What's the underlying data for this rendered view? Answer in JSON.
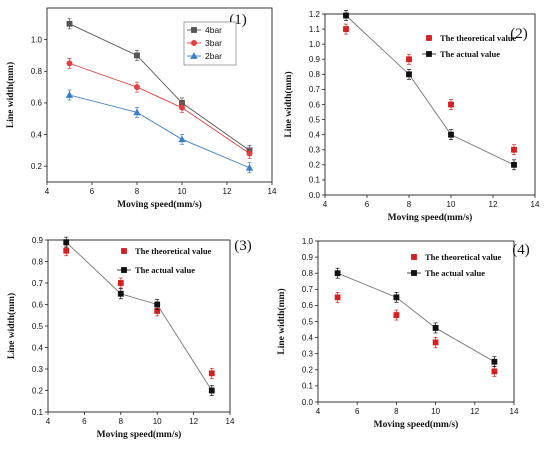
{
  "chart_data": [
    {
      "type": "line",
      "panel_label": "(1)",
      "xlabel": "Moving speed(mm/s)",
      "ylabel": "Line width(mm)",
      "xlim": [
        4,
        14
      ],
      "ylim": [
        0.1,
        1.2
      ],
      "xticks": [
        4,
        6,
        8,
        10,
        12,
        14
      ],
      "yticks": [
        0.2,
        0.4,
        0.6,
        0.8,
        1.0
      ],
      "ytick_labels": [
        "0.2",
        "0.4",
        "0.6",
        "0.8",
        "1.0"
      ],
      "legend_position": "top-right",
      "x": [
        5,
        8,
        10,
        13
      ],
      "series": [
        {
          "name": "4bar",
          "values": [
            1.1,
            0.9,
            0.6,
            0.3
          ],
          "color": "#555555",
          "marker": "square"
        },
        {
          "name": "3bar",
          "values": [
            0.85,
            0.7,
            0.57,
            0.28
          ],
          "color": "#e04040",
          "marker": "circle"
        },
        {
          "name": "2bar",
          "values": [
            0.65,
            0.54,
            0.37,
            0.19
          ],
          "color": "#3a7dc9",
          "marker": "triangle"
        }
      ]
    },
    {
      "type": "line",
      "panel_label": "(2)",
      "xlabel": "Moving speed(mm/s)",
      "ylabel": "Line width(mm)",
      "xlim": [
        4,
        14
      ],
      "ylim": [
        0,
        1.2
      ],
      "xticks": [
        4,
        6,
        8,
        10,
        12,
        14
      ],
      "yticks": [
        0,
        0.1,
        0.2,
        0.3,
        0.4,
        0.5,
        0.6,
        0.7,
        0.8,
        0.9,
        1.0,
        1.1,
        1.2
      ],
      "ytick_labels": [
        "0.0",
        "0.1",
        "0.2",
        "0.3",
        "0.4",
        "0.5",
        "0.6",
        "0.7",
        "0.8",
        "0.9",
        "1.0",
        "1.1",
        "1.2"
      ],
      "legend_position": "top-right",
      "x": [
        5,
        8,
        10,
        13
      ],
      "series": [
        {
          "name": "The theoretical value",
          "values": [
            1.1,
            0.9,
            0.6,
            0.3
          ],
          "color": "#d42020",
          "marker": "square",
          "line": false
        },
        {
          "name": "The actual value",
          "values": [
            1.19,
            0.8,
            0.4,
            0.2
          ],
          "color": "#111111",
          "marker": "square",
          "line": true
        }
      ]
    },
    {
      "type": "line",
      "panel_label": "(3)",
      "xlabel": "Moving speed(mm/s)",
      "ylabel": "Line width(mm)",
      "xlim": [
        4,
        14
      ],
      "ylim": [
        0.1,
        0.9
      ],
      "xticks": [
        4,
        6,
        8,
        10,
        12,
        14
      ],
      "yticks": [
        0.1,
        0.2,
        0.3,
        0.4,
        0.5,
        0.6,
        0.7,
        0.8,
        0.9
      ],
      "ytick_labels": [
        "0.1",
        "0.2",
        "0.3",
        "0.4",
        "0.5",
        "0.6",
        "0.7",
        "0.8",
        "0.9"
      ],
      "legend_position": "top-right",
      "x": [
        5,
        8,
        10,
        13
      ],
      "series": [
        {
          "name": "The theoretical value",
          "values": [
            0.85,
            0.7,
            0.57,
            0.28
          ],
          "color": "#d42020",
          "marker": "square",
          "line": false
        },
        {
          "name": "The actual value",
          "values": [
            0.89,
            0.65,
            0.6,
            0.2
          ],
          "color": "#111111",
          "marker": "square",
          "line": true
        }
      ]
    },
    {
      "type": "line",
      "panel_label": "(4)",
      "xlabel": "Moving speed(mm/s)",
      "ylabel": "Line width(mm)",
      "xlim": [
        4,
        14
      ],
      "ylim": [
        0,
        1.0
      ],
      "xticks": [
        4,
        6,
        8,
        10,
        12,
        14
      ],
      "yticks": [
        0,
        0.1,
        0.2,
        0.3,
        0.4,
        0.5,
        0.6,
        0.7,
        0.8,
        0.9,
        1.0
      ],
      "ytick_labels": [
        "0.0",
        "0.1",
        "0.2",
        "0.3",
        "0.4",
        "0.5",
        "0.6",
        "0.7",
        "0.8",
        "0.9",
        "1.0"
      ],
      "legend_position": "top-right",
      "x": [
        5,
        8,
        10,
        13
      ],
      "series": [
        {
          "name": "The theoretical value",
          "values": [
            0.65,
            0.54,
            0.37,
            0.19
          ],
          "color": "#d42020",
          "marker": "square",
          "line": false
        },
        {
          "name": "The actual value",
          "values": [
            0.8,
            0.65,
            0.46,
            0.25
          ],
          "color": "#111111",
          "marker": "square",
          "line": true
        }
      ]
    }
  ]
}
